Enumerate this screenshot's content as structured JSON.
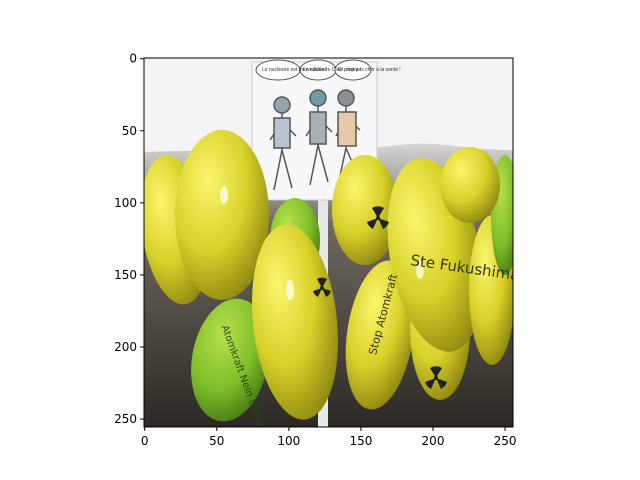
{
  "figure": {
    "image_description_free": true,
    "axes": {
      "x_ticks": [
        {
          "value": 0,
          "label": "0"
        },
        {
          "value": 50,
          "label": "50"
        },
        {
          "value": 100,
          "label": "100"
        },
        {
          "value": 150,
          "label": "150"
        },
        {
          "value": 200,
          "label": "200"
        },
        {
          "value": 250,
          "label": "250"
        }
      ],
      "y_ticks": [
        {
          "value": 0,
          "label": "0"
        },
        {
          "value": 50,
          "label": "50"
        },
        {
          "value": 100,
          "label": "100"
        },
        {
          "value": 150,
          "label": "150"
        },
        {
          "value": 200,
          "label": "200"
        },
        {
          "value": 250,
          "label": "250"
        }
      ],
      "x_range": [
        0,
        255
      ],
      "y_range": [
        0,
        255
      ],
      "y_inverted": true
    },
    "photo": {
      "sign_texts": [
        "Le nucléaire est mérveilleux !",
        "Le nucléaire C'est propre !",
        "Et c'est pas cher à la santé !"
      ],
      "balloon_texts": [
        "Ste Fukushima",
        "Stop Atomkraft",
        "Atomkraft Nein Danke"
      ]
    },
    "colors": {
      "sky": "#ececec",
      "tent": "#f5f5f5",
      "balloon_yellow": "#d8d22a",
      "balloon_yellow_dark": "#aea318",
      "balloon_green": "#7fbf2a",
      "ground": "#2f2a26"
    }
  }
}
